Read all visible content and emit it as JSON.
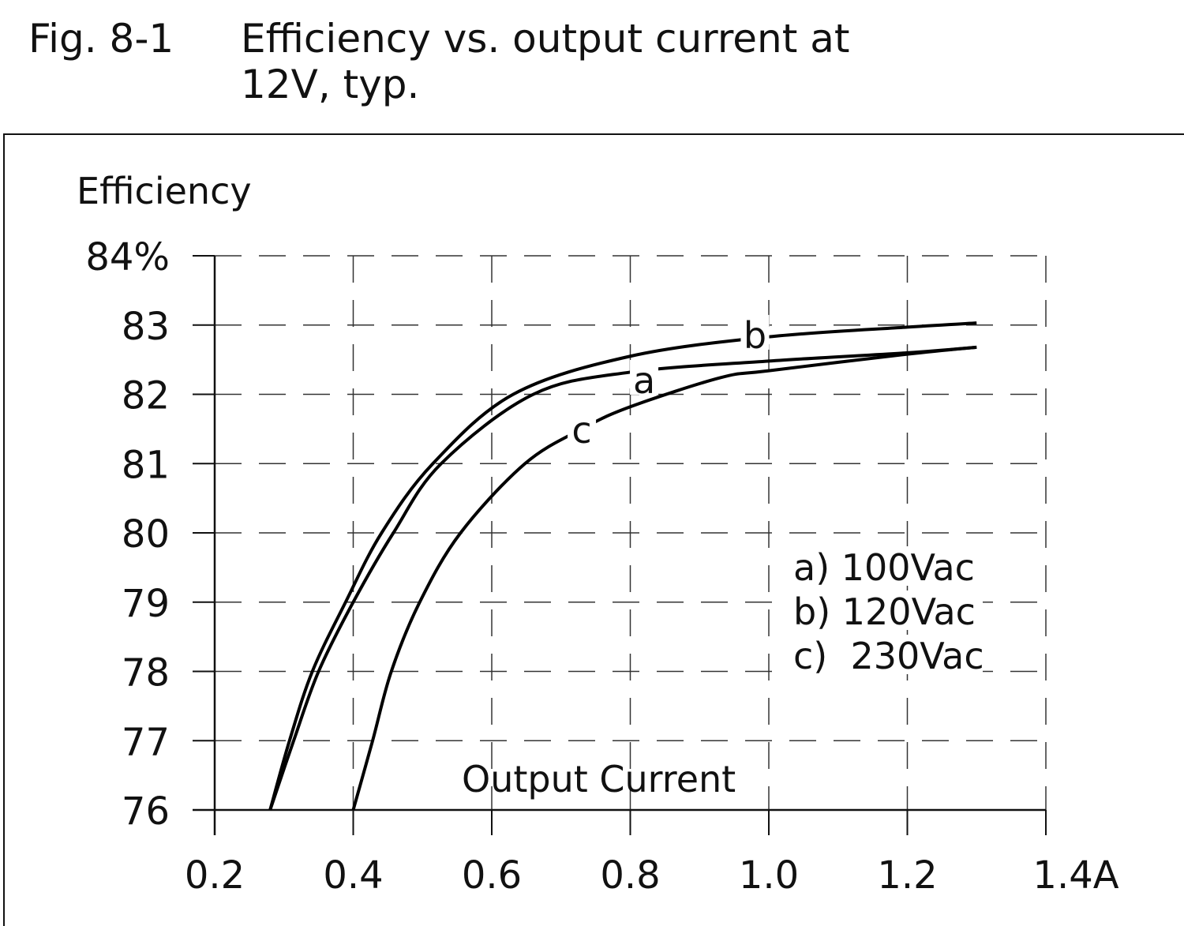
{
  "figure_label": "Fig. 8-1",
  "chart_data": {
    "type": "line",
    "title": "Efficiency vs. output current at 12V, typ.",
    "xlabel": "Output Current",
    "ylabel": "Efficiency",
    "xlim": [
      0.2,
      1.4
    ],
    "ylim": [
      76,
      84
    ],
    "x_ticks": [
      "0.2",
      "0.4",
      "0.6",
      "0.8",
      "1.0",
      "1.2",
      "1.4A"
    ],
    "y_ticks": [
      "76",
      "77",
      "78",
      "79",
      "80",
      "81",
      "82",
      "83",
      "84%"
    ],
    "grid": true,
    "legend_position": "right",
    "legend": [
      "a) 100Vac",
      "b) 120Vac",
      "c)  230Vac"
    ],
    "series": [
      {
        "name": "a",
        "x": [
          0.28,
          0.314,
          0.35,
          0.4,
          0.458,
          0.527,
          0.66,
          0.8,
          1.0,
          1.2,
          1.3
        ],
        "y": [
          76,
          77,
          78,
          79,
          80,
          81,
          82,
          82.32,
          82.48,
          82.6,
          82.68
        ]
      },
      {
        "name": "b",
        "x": [
          0.28,
          0.308,
          0.341,
          0.389,
          0.441,
          0.515,
          0.631,
          0.8,
          1.0,
          1.2,
          1.3
        ],
        "y": [
          76,
          77,
          78,
          79,
          80,
          81,
          82,
          82.55,
          82.83,
          82.97,
          83.03
        ]
      },
      {
        "name": "c",
        "x": [
          0.4,
          0.428,
          0.455,
          0.496,
          0.555,
          0.648,
          0.73,
          0.8,
          0.93,
          1.0,
          1.2,
          1.3
        ],
        "y": [
          76,
          77,
          78,
          79,
          80,
          81,
          81.5,
          81.82,
          82.24,
          82.34,
          82.58,
          82.68
        ]
      }
    ],
    "curve_labels": [
      {
        "text": "a",
        "x": 0.82,
        "y": 82.2
      },
      {
        "text": "b",
        "x": 0.98,
        "y": 82.85
      },
      {
        "text": "c",
        "x": 0.73,
        "y": 81.48
      }
    ]
  }
}
